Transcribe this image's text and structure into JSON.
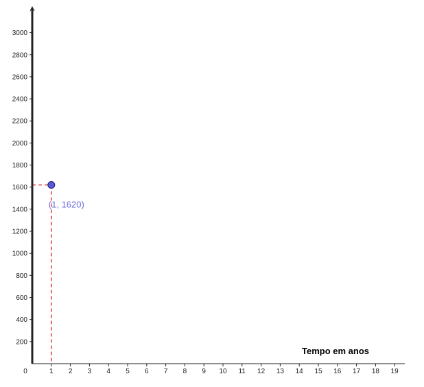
{
  "chart_data": {
    "type": "scatter",
    "xlabel": "Tempo em anos",
    "ylabel": "",
    "xlim": [
      0,
      19
    ],
    "ylim": [
      0,
      3000
    ],
    "x_ticks": [
      0,
      1,
      2,
      3,
      4,
      5,
      6,
      7,
      8,
      9,
      10,
      11,
      12,
      13,
      14,
      15,
      16,
      17,
      18,
      19
    ],
    "y_ticks": [
      200,
      400,
      600,
      800,
      1000,
      1200,
      1400,
      1600,
      1800,
      2000,
      2200,
      2400,
      2600,
      2800,
      3000
    ],
    "grid": false,
    "points": [
      {
        "x": 1,
        "y": 1620,
        "label": "(1, 1620)"
      }
    ],
    "guide_lines": "dashed",
    "colors": {
      "point_fill": "#5a5ad6",
      "point_stroke": "#1f1f7a",
      "point_label": "#6b6bdc",
      "guide": "#e23b3b",
      "axis": "#222222"
    }
  }
}
